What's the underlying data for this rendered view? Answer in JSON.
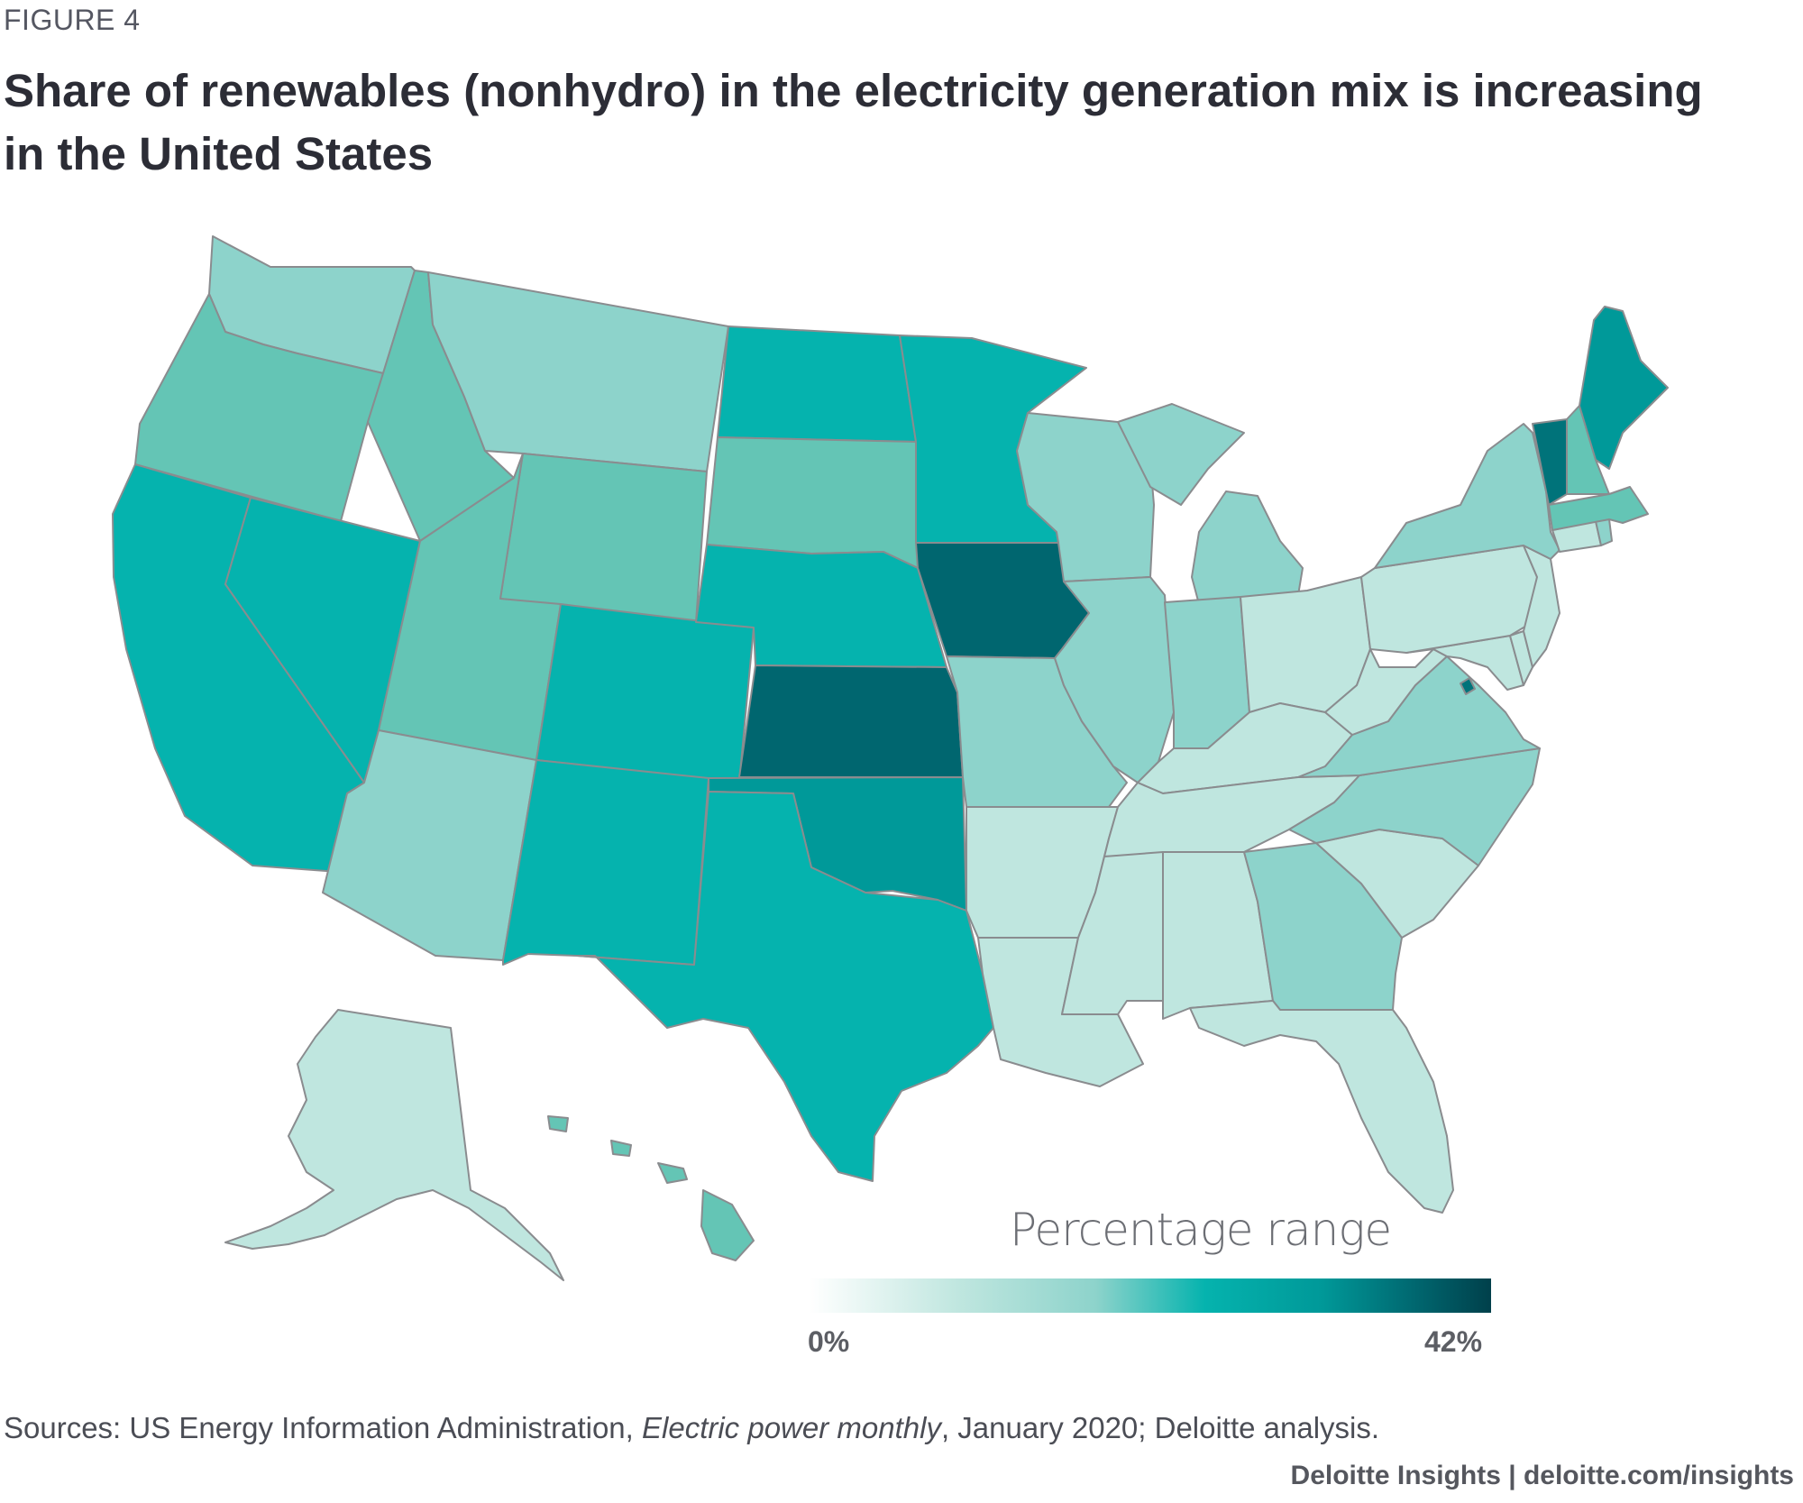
{
  "figure_label": "FIGURE 4",
  "title": {
    "line1": "Share of renewables (nonhydro) in the electricity generation mix is increasing",
    "line2": "in the United States"
  },
  "colors": {
    "very_low": "#bfe6df",
    "low": "#8dd3cb",
    "mid_low": "#64c5b5",
    "mid": "#05b3ae",
    "mid_high": "#009999",
    "high": "#00737a",
    "highest": "#00666f",
    "border": "#8a8c8f"
  },
  "map": {
    "states": [
      {
        "id": "WA",
        "tier": "low"
      },
      {
        "id": "OR",
        "tier": "mid_low"
      },
      {
        "id": "CA",
        "tier": "mid"
      },
      {
        "id": "NV",
        "tier": "mid"
      },
      {
        "id": "ID",
        "tier": "mid_low"
      },
      {
        "id": "MT",
        "tier": "low"
      },
      {
        "id": "WY",
        "tier": "mid_low"
      },
      {
        "id": "UT",
        "tier": "mid_low"
      },
      {
        "id": "AZ",
        "tier": "low"
      },
      {
        "id": "CO",
        "tier": "mid"
      },
      {
        "id": "NM",
        "tier": "mid"
      },
      {
        "id": "ND",
        "tier": "mid"
      },
      {
        "id": "SD",
        "tier": "mid_low"
      },
      {
        "id": "NE",
        "tier": "mid"
      },
      {
        "id": "KS",
        "tier": "highest"
      },
      {
        "id": "OK",
        "tier": "mid_high"
      },
      {
        "id": "TX",
        "tier": "mid"
      },
      {
        "id": "MN",
        "tier": "mid"
      },
      {
        "id": "IA",
        "tier": "highest"
      },
      {
        "id": "MO",
        "tier": "low"
      },
      {
        "id": "AR",
        "tier": "very_low"
      },
      {
        "id": "LA",
        "tier": "very_low"
      },
      {
        "id": "WI",
        "tier": "low"
      },
      {
        "id": "IL",
        "tier": "low"
      },
      {
        "id": "MI",
        "tier": "low"
      },
      {
        "id": "IN",
        "tier": "low"
      },
      {
        "id": "OH",
        "tier": "very_low"
      },
      {
        "id": "KY",
        "tier": "very_low"
      },
      {
        "id": "TN",
        "tier": "very_low"
      },
      {
        "id": "MS",
        "tier": "very_low"
      },
      {
        "id": "AL",
        "tier": "very_low"
      },
      {
        "id": "GA",
        "tier": "low"
      },
      {
        "id": "FL",
        "tier": "very_low"
      },
      {
        "id": "SC",
        "tier": "very_low"
      },
      {
        "id": "NC",
        "tier": "low"
      },
      {
        "id": "VA",
        "tier": "low"
      },
      {
        "id": "WV",
        "tier": "very_low"
      },
      {
        "id": "PA",
        "tier": "very_low"
      },
      {
        "id": "NY",
        "tier": "low"
      },
      {
        "id": "NJ",
        "tier": "very_low"
      },
      {
        "id": "DE",
        "tier": "very_low"
      },
      {
        "id": "MD",
        "tier": "very_low"
      },
      {
        "id": "DC",
        "tier": "high"
      },
      {
        "id": "CT",
        "tier": "very_low"
      },
      {
        "id": "RI",
        "tier": "low"
      },
      {
        "id": "MA",
        "tier": "mid_low"
      },
      {
        "id": "VT",
        "tier": "high"
      },
      {
        "id": "NH",
        "tier": "mid_low"
      },
      {
        "id": "ME",
        "tier": "mid_high"
      },
      {
        "id": "AK",
        "tier": "very_low"
      },
      {
        "id": "HI",
        "tier": "mid_low"
      }
    ]
  },
  "legend": {
    "title": "Percentage range",
    "min_label": "0%",
    "max_label": "42%",
    "min_value": 0,
    "max_value": 42
  },
  "sources": {
    "prefix": "Sources: US Energy Information Administration, ",
    "publication": "Electric power monthly",
    "suffix": ", January 2020; Deloitte analysis."
  },
  "footer": "Deloitte Insights | deloitte.com/insights"
}
